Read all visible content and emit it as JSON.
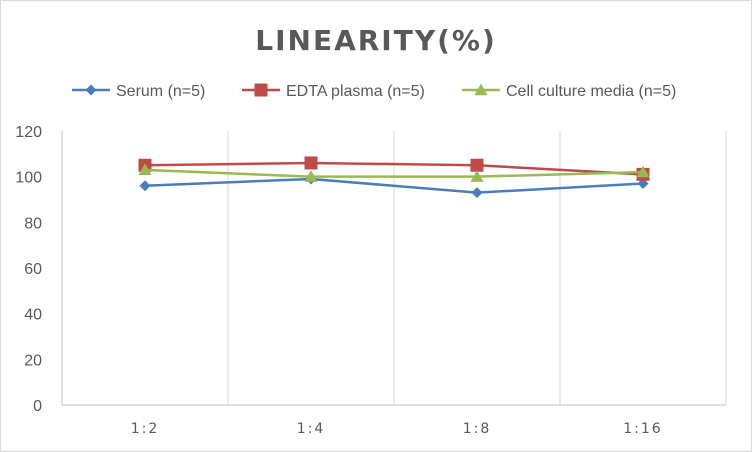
{
  "chart_data": {
    "type": "line",
    "title": "LINEARITY(%)",
    "xlabel": "",
    "ylabel": "",
    "categories": [
      "1:2",
      "1:4",
      "1:8",
      "1:16"
    ],
    "ylim": [
      0,
      120
    ],
    "yticks": [
      0,
      20,
      40,
      60,
      80,
      100,
      120
    ],
    "grid": "vertical",
    "legend_position": "top",
    "series": [
      {
        "name": "Serum (n=5)",
        "values": [
          96,
          99,
          93,
          97
        ],
        "color": "#4a7ebb",
        "marker": "diamond"
      },
      {
        "name": "EDTA plasma (n=5)",
        "values": [
          105,
          106,
          105,
          101
        ],
        "color": "#be4b48",
        "marker": "square"
      },
      {
        "name": "Cell culture media (n=5)",
        "values": [
          103,
          100,
          100,
          102
        ],
        "color": "#98b954",
        "marker": "triangle"
      }
    ]
  }
}
